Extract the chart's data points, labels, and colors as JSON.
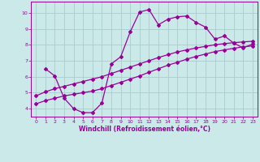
{
  "xlabel": "Windchill (Refroidissement éolien,°C)",
  "ylabel": "",
  "bg_color": "#cce9e9",
  "line_color": "#990099",
  "xlim": [
    -0.5,
    23.5
  ],
  "ylim": [
    3.5,
    10.7
  ],
  "xticks": [
    0,
    1,
    2,
    3,
    4,
    5,
    6,
    7,
    8,
    9,
    10,
    11,
    12,
    13,
    14,
    15,
    16,
    17,
    18,
    19,
    20,
    21,
    22,
    23
  ],
  "yticks": [
    4,
    5,
    6,
    7,
    8,
    9,
    10
  ],
  "grid_color": "#aacccc",
  "line1_x": [
    1,
    2,
    3,
    4,
    5,
    6,
    7,
    8,
    9,
    10,
    11,
    12,
    13,
    14,
    15,
    16,
    17,
    18,
    19,
    20,
    21,
    22,
    23
  ],
  "line1_y": [
    6.5,
    6.05,
    4.65,
    4.0,
    3.75,
    3.75,
    4.35,
    6.8,
    7.25,
    8.8,
    10.05,
    10.2,
    9.25,
    9.6,
    9.75,
    9.8,
    9.4,
    9.1,
    8.35,
    8.55,
    8.1,
    7.8,
    8.05
  ],
  "line2_x": [
    0,
    1,
    2,
    3,
    4,
    5,
    6,
    7,
    8,
    9,
    10,
    11,
    12,
    13,
    14,
    15,
    16,
    17,
    18,
    19,
    20,
    21,
    22,
    23
  ],
  "line2_y": [
    4.8,
    5.05,
    5.25,
    5.4,
    5.55,
    5.7,
    5.85,
    6.0,
    6.2,
    6.4,
    6.6,
    6.8,
    7.0,
    7.2,
    7.38,
    7.55,
    7.68,
    7.8,
    7.9,
    8.0,
    8.07,
    8.13,
    8.18,
    8.22
  ],
  "line3_x": [
    0,
    1,
    2,
    3,
    4,
    5,
    6,
    7,
    8,
    9,
    10,
    11,
    12,
    13,
    14,
    15,
    16,
    17,
    18,
    19,
    20,
    21,
    22,
    23
  ],
  "line3_y": [
    4.3,
    4.5,
    4.65,
    4.8,
    4.9,
    5.0,
    5.1,
    5.25,
    5.45,
    5.65,
    5.85,
    6.05,
    6.28,
    6.5,
    6.72,
    6.9,
    7.1,
    7.27,
    7.42,
    7.57,
    7.68,
    7.78,
    7.87,
    7.93
  ]
}
